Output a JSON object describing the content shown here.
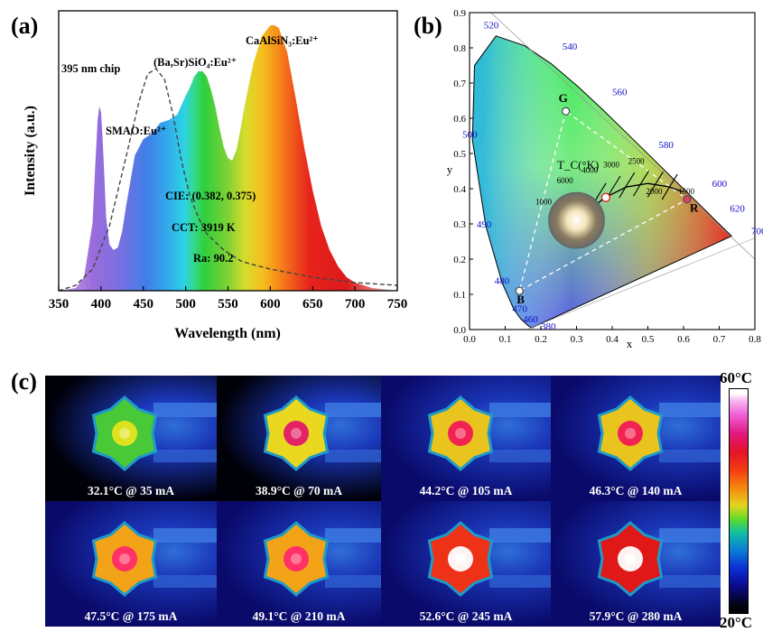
{
  "panels": {
    "a": "(a)",
    "b": "(b)",
    "c": "(c)"
  },
  "chart_data": [
    {
      "type": "line",
      "panel": "(a)",
      "xlabel": "Wavelength (nm)",
      "ylabel": "Intensity (a.u.)",
      "xlim": [
        350,
        750
      ],
      "xticks": [
        "350",
        "400",
        "450",
        "500",
        "550",
        "600",
        "650",
        "700",
        "750"
      ],
      "series": [
        {
          "name": "emission spectrum",
          "x": [
            350,
            370,
            380,
            390,
            393,
            396,
            398,
            400,
            402,
            404,
            406,
            410,
            415,
            420,
            425,
            430,
            440,
            450,
            460,
            470,
            480,
            490,
            500,
            505,
            510,
            515,
            520,
            525,
            530,
            535,
            540,
            545,
            550,
            555,
            560,
            565,
            570,
            580,
            590,
            600,
            605,
            610,
            620,
            630,
            640,
            650,
            660,
            670,
            680,
            690,
            700,
            720,
            750
          ],
          "y": [
            0.0,
            0.01,
            0.05,
            0.25,
            0.45,
            0.63,
            0.68,
            0.66,
            0.55,
            0.42,
            0.27,
            0.17,
            0.15,
            0.16,
            0.22,
            0.32,
            0.5,
            0.56,
            0.58,
            0.62,
            0.63,
            0.65,
            0.72,
            0.75,
            0.79,
            0.81,
            0.81,
            0.79,
            0.74,
            0.68,
            0.6,
            0.53,
            0.49,
            0.48,
            0.52,
            0.6,
            0.69,
            0.84,
            0.94,
            0.98,
            0.98,
            0.97,
            0.88,
            0.71,
            0.53,
            0.37,
            0.24,
            0.15,
            0.09,
            0.05,
            0.03,
            0.01,
            0.0
          ]
        },
        {
          "name": "excitation (dashed)",
          "x": [
            350,
            370,
            390,
            410,
            430,
            445,
            455,
            465,
            475,
            485,
            495,
            505,
            515,
            525,
            535,
            545,
            555,
            565,
            575,
            600,
            650,
            700,
            750
          ],
          "y": [
            0.0,
            0.02,
            0.08,
            0.24,
            0.5,
            0.7,
            0.8,
            0.82,
            0.78,
            0.65,
            0.48,
            0.35,
            0.27,
            0.21,
            0.18,
            0.15,
            0.13,
            0.11,
            0.1,
            0.08,
            0.05,
            0.03,
            0.02
          ]
        }
      ],
      "annotations": {
        "chip": "395 nm chip",
        "smao": "SMAO:Eu²⁺",
        "basr": "(Ba,Sr)SiO₄:Eu²⁺",
        "casn": "CaAlSiN₃:Eu²⁺",
        "cie": "CIE: (0.382, 0.375)",
        "cct": "CCT: 3919 K",
        "ra": "Ra: 90.2"
      }
    },
    {
      "type": "scatter",
      "panel": "(b)",
      "xlabel": "x",
      "ylabel": "y",
      "xlim": [
        0.0,
        0.8
      ],
      "ylim": [
        0.0,
        0.9
      ],
      "xticks": [
        "0.0",
        "0.1",
        "0.2",
        "0.3",
        "0.4",
        "0.5",
        "0.6",
        "0.7",
        "0.8"
      ],
      "yticks": [
        "0.0",
        "0.1",
        "0.2",
        "0.3",
        "0.4",
        "0.5",
        "0.6",
        "0.7",
        "0.8",
        "0.9"
      ],
      "locus_labels": [
        "380",
        "460",
        "470",
        "480",
        "490",
        "500",
        "520",
        "540",
        "560",
        "580",
        "600",
        "620",
        "700"
      ],
      "points": [
        {
          "name": "G",
          "x": 0.27,
          "y": 0.62
        },
        {
          "name": "B",
          "x": 0.14,
          "y": 0.11
        },
        {
          "name": "R",
          "x": 0.61,
          "y": 0.37
        },
        {
          "name": "white LED",
          "x": 0.382,
          "y": 0.375
        }
      ],
      "planckian_label": "T_C(°K)",
      "cct_labels": [
        "1000",
        "6000",
        "4000",
        "3000",
        "2500",
        "2000",
        "1500"
      ]
    }
  ],
  "thermal": {
    "colorbar_max": "60°C",
    "colorbar_min": "20°C",
    "tiles": [
      {
        "caption": "32.1°C @ 35 mA",
        "temp": 32.1
      },
      {
        "caption": "38.9°C @ 70 mA",
        "temp": 38.9
      },
      {
        "caption": "44.2°C @ 105 mA",
        "temp": 44.2
      },
      {
        "caption": "46.3°C @ 140 mA",
        "temp": 46.3
      },
      {
        "caption": "47.5°C @ 175 mA",
        "temp": 47.5
      },
      {
        "caption": "49.1°C @ 210 mA",
        "temp": 49.1
      },
      {
        "caption": "52.6°C @ 245 mA",
        "temp": 52.6
      },
      {
        "caption": "57.9°C @ 280 mA",
        "temp": 57.9
      }
    ]
  }
}
